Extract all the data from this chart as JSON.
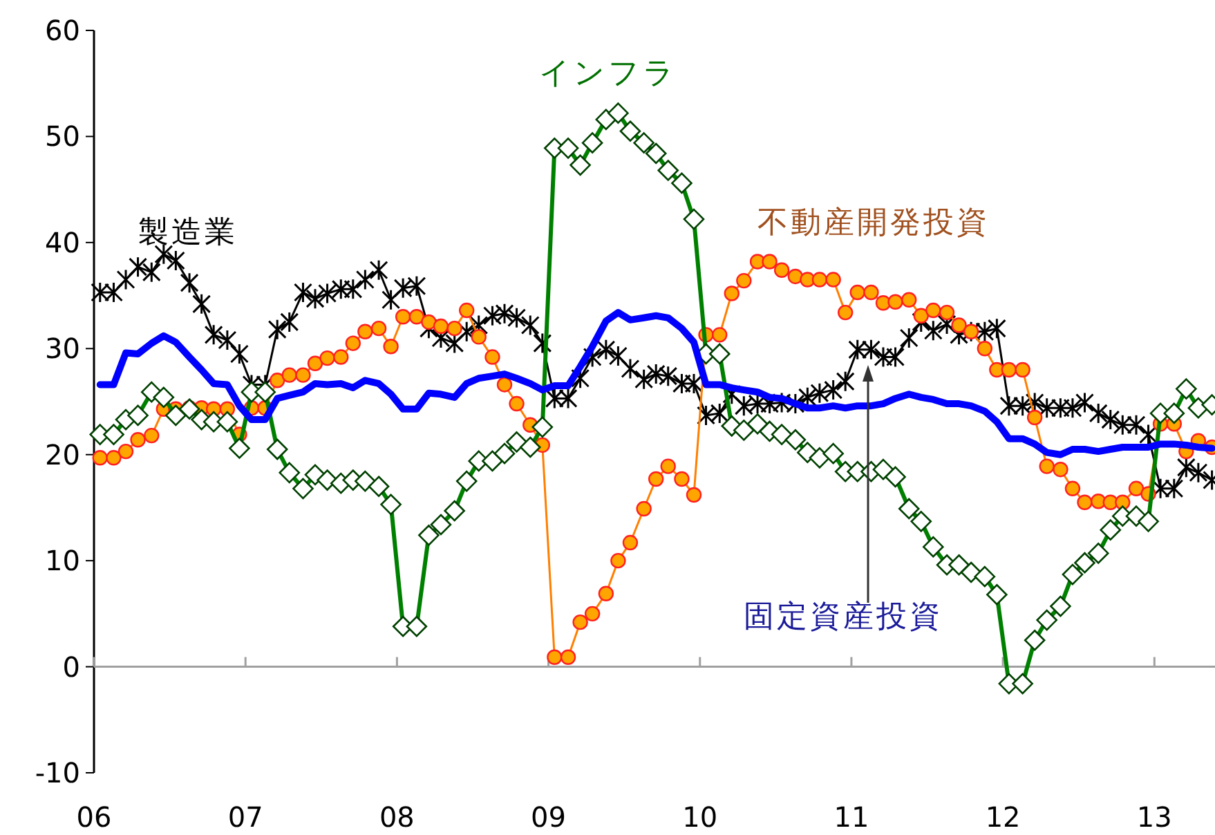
{
  "chart_data": {
    "type": "line",
    "x": [
      6.04,
      6.13,
      6.21,
      6.29,
      6.38,
      6.46,
      6.54,
      6.63,
      6.71,
      6.79,
      6.88,
      6.96,
      7.04,
      7.13,
      7.21,
      7.29,
      7.38,
      7.46,
      7.54,
      7.63,
      7.71,
      7.79,
      7.88,
      7.96,
      8.04,
      8.13,
      8.21,
      8.29,
      8.38,
      8.46,
      8.54,
      8.63,
      8.71,
      8.79,
      8.88,
      8.96,
      9.04,
      9.13,
      9.21,
      9.29,
      9.38,
      9.46,
      9.54,
      9.63,
      9.71,
      9.79,
      9.88,
      9.96,
      10.04,
      10.13,
      10.21,
      10.29,
      10.38,
      10.46,
      10.54,
      10.63,
      10.71,
      10.79,
      10.88,
      10.96,
      11.04,
      11.13,
      11.21,
      11.29,
      11.38,
      11.46,
      11.54,
      11.63,
      11.71,
      11.79,
      11.88,
      11.96,
      12.04,
      12.13,
      12.21,
      12.29,
      12.38,
      12.46,
      12.54,
      12.63,
      12.71,
      12.79,
      12.88,
      12.96,
      13.04,
      13.13,
      13.21,
      13.29,
      13.38
    ],
    "series": [
      {
        "name": "製造業",
        "color": "#000000",
        "marker": "cross",
        "values": [
          35.3,
          35.3,
          36.5,
          37.7,
          37.2,
          38.9,
          38.3,
          36.2,
          34.2,
          31.3,
          30.8,
          29.5,
          26.6,
          26.6,
          31.8,
          32.5,
          35.3,
          34.7,
          35.2,
          35.6,
          35.6,
          36.5,
          37.4,
          34.6,
          35.7,
          35.9,
          31.9,
          31.0,
          30.5,
          31.6,
          32.2,
          33.1,
          33.3,
          32.9,
          32.2,
          30.5,
          25.3,
          25.3,
          27.2,
          29.2,
          29.9,
          29.3,
          28.1,
          27.1,
          27.6,
          27.4,
          26.7,
          26.7,
          23.7,
          23.9,
          25.7,
          24.6,
          24.8,
          24.8,
          24.9,
          24.8,
          25.4,
          25.8,
          26.1,
          26.9,
          29.9,
          29.9,
          29.2,
          29.2,
          31.0,
          32.5,
          31.7,
          32.3,
          31.3,
          31.6,
          31.6,
          31.9,
          24.6,
          24.6,
          24.9,
          24.4,
          24.4,
          24.4,
          24.9,
          23.9,
          23.3,
          22.8,
          22.8,
          21.9,
          16.8,
          16.8,
          18.8,
          18.3,
          17.6
        ]
      },
      {
        "name": "固定資産投資",
        "color": "#0000ff",
        "marker": "none",
        "values": [
          26.6,
          26.6,
          29.6,
          29.5,
          30.5,
          31.2,
          30.6,
          29.2,
          28.0,
          26.7,
          26.6,
          24.6,
          23.3,
          23.3,
          25.3,
          25.6,
          25.9,
          26.7,
          26.6,
          26.7,
          26.3,
          27.0,
          26.7,
          25.7,
          24.3,
          24.3,
          25.8,
          25.7,
          25.4,
          26.7,
          27.2,
          27.4,
          27.6,
          27.2,
          26.7,
          26.1,
          26.5,
          26.5,
          28.3,
          30.2,
          32.6,
          33.4,
          32.7,
          32.9,
          33.1,
          32.9,
          31.9,
          30.6,
          26.6,
          26.6,
          26.3,
          26.1,
          25.9,
          25.4,
          25.3,
          24.8,
          24.4,
          24.4,
          24.6,
          24.4,
          24.6,
          24.6,
          24.8,
          25.3,
          25.7,
          25.4,
          25.2,
          24.8,
          24.8,
          24.6,
          24.1,
          23.1,
          21.5,
          21.5,
          21.0,
          20.2,
          20.0,
          20.5,
          20.5,
          20.3,
          20.5,
          20.7,
          20.7,
          20.7,
          21.0,
          21.0,
          20.9,
          20.7,
          20.6
        ]
      },
      {
        "name": "不動産開発投資",
        "color": "#ff7f00",
        "marker": "circle",
        "values": [
          19.7,
          19.7,
          20.3,
          21.4,
          21.8,
          24.3,
          24.3,
          24.4,
          24.4,
          24.3,
          24.3,
          21.9,
          24.4,
          24.4,
          27.0,
          27.5,
          27.5,
          28.6,
          29.1,
          29.2,
          30.5,
          31.6,
          31.9,
          30.2,
          33.0,
          33.0,
          32.5,
          32.1,
          31.9,
          33.6,
          31.1,
          29.2,
          26.6,
          24.8,
          22.8,
          20.9,
          0.9,
          0.9,
          4.2,
          5.0,
          6.9,
          10.0,
          11.7,
          14.9,
          17.7,
          18.9,
          17.7,
          16.2,
          31.3,
          31.3,
          35.2,
          36.4,
          38.2,
          38.2,
          37.4,
          36.8,
          36.5,
          36.5,
          36.5,
          33.4,
          35.3,
          35.3,
          34.3,
          34.4,
          34.6,
          33.1,
          33.6,
          33.4,
          32.2,
          31.6,
          30.0,
          28.0,
          28.0,
          28.0,
          23.5,
          18.9,
          18.6,
          16.8,
          15.5,
          15.6,
          15.5,
          15.5,
          16.8,
          16.3,
          22.9,
          22.9,
          20.3,
          21.3,
          20.7
        ]
      },
      {
        "name": "インフラ",
        "color": "#008000",
        "marker": "diamond",
        "values": [
          21.9,
          21.9,
          23.3,
          23.7,
          25.9,
          25.4,
          23.7,
          24.3,
          23.3,
          23.1,
          23.1,
          20.6,
          25.9,
          25.9,
          20.5,
          18.3,
          16.8,
          18.1,
          17.6,
          17.3,
          17.6,
          17.5,
          17.0,
          15.3,
          3.8,
          3.8,
          12.4,
          13.4,
          14.7,
          17.5,
          19.4,
          19.4,
          20.1,
          21.2,
          20.7,
          22.6,
          48.9,
          48.9,
          47.3,
          49.4,
          51.6,
          52.2,
          50.5,
          49.4,
          48.4,
          46.8,
          45.6,
          42.2,
          29.5,
          29.5,
          22.7,
          22.3,
          22.9,
          22.2,
          21.9,
          21.4,
          20.2,
          19.7,
          20.1,
          18.4,
          18.4,
          18.4,
          18.6,
          17.9,
          14.9,
          13.7,
          11.3,
          9.6,
          9.6,
          8.9,
          8.5,
          6.8,
          -1.6,
          -1.6,
          2.5,
          4.4,
          5.7,
          8.7,
          9.8,
          10.7,
          12.9,
          14.2,
          14.2,
          13.7,
          23.9,
          23.9,
          26.2,
          24.4,
          24.7
        ]
      }
    ],
    "xlim": [
      6,
      13.4
    ],
    "xticks": [
      {
        "value": 6,
        "label": "06"
      },
      {
        "value": 7,
        "label": "07"
      },
      {
        "value": 8,
        "label": "08"
      },
      {
        "value": 9,
        "label": "09"
      },
      {
        "value": 10,
        "label": "10"
      },
      {
        "value": 11,
        "label": "11"
      },
      {
        "value": 12,
        "label": "12"
      },
      {
        "value": 13,
        "label": "13"
      }
    ],
    "ylim": [
      -10,
      60
    ],
    "yticks": [
      -10,
      0,
      10,
      20,
      30,
      40,
      50,
      60
    ],
    "ref_lines": [
      {
        "axis": "y",
        "value": 0,
        "color": "#a0a0a0"
      }
    ],
    "grid": false,
    "legend": false
  }
}
